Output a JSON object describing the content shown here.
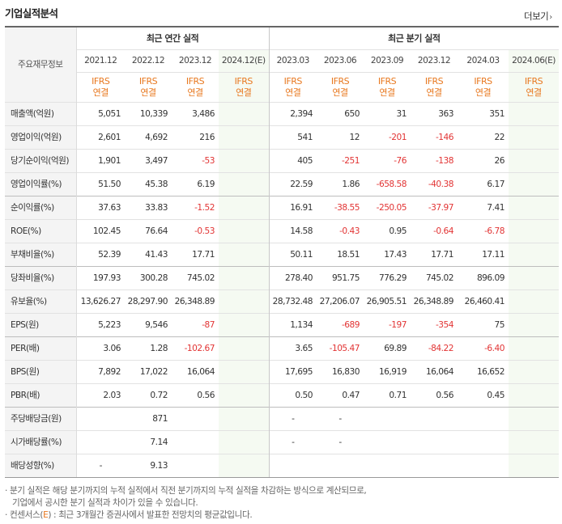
{
  "header": {
    "title": "기업실적분석",
    "more_label": "더보기",
    "more_icon": "chevron-right"
  },
  "table": {
    "row_header_label": "주요재무정보",
    "groups": {
      "annual": "최근 연간 실적",
      "quarterly": "최근 분기 실적"
    },
    "periods": [
      "2021.12",
      "2022.12",
      "2023.12",
      "2024.12(E)",
      "2023.03",
      "2023.06",
      "2023.09",
      "2023.12",
      "2024.03",
      "2024.06(E)"
    ],
    "ifrs_label": "IFRS",
    "basis_label": "연결",
    "rows": [
      {
        "label": "매출액(억원)",
        "values": [
          "5,051",
          "10,339",
          "3,486",
          "",
          "2,394",
          "650",
          "31",
          "363",
          "351",
          ""
        ]
      },
      {
        "label": "영업이익(억원)",
        "values": [
          "2,601",
          "4,692",
          "216",
          "",
          "541",
          "12",
          "-201",
          "-146",
          "22",
          ""
        ]
      },
      {
        "label": "당기순이익(억원)",
        "values": [
          "1,901",
          "3,497",
          "-53",
          "",
          "405",
          "-251",
          "-76",
          "-138",
          "26",
          ""
        ]
      },
      {
        "label": "영업이익률(%)",
        "values": [
          "51.50",
          "45.38",
          "6.19",
          "",
          "22.59",
          "1.86",
          "-658.58",
          "-40.38",
          "6.17",
          ""
        ]
      },
      {
        "label": "순이익률(%)",
        "values": [
          "37.63",
          "33.83",
          "-1.52",
          "",
          "16.91",
          "-38.55",
          "-250.05",
          "-37.97",
          "7.41",
          ""
        ]
      },
      {
        "label": "ROE(%)",
        "values": [
          "102.45",
          "76.64",
          "-0.53",
          "",
          "14.58",
          "-0.43",
          "0.95",
          "-0.64",
          "-6.78",
          ""
        ]
      },
      {
        "label": "부채비율(%)",
        "values": [
          "52.39",
          "41.43",
          "17.71",
          "",
          "50.11",
          "18.51",
          "17.43",
          "17.71",
          "17.11",
          ""
        ]
      },
      {
        "label": "당좌비율(%)",
        "values": [
          "197.93",
          "300.28",
          "745.02",
          "",
          "278.40",
          "951.75",
          "776.29",
          "745.02",
          "896.09",
          ""
        ]
      },
      {
        "label": "유보율(%)",
        "values": [
          "13,626.27",
          "28,297.90",
          "26,348.89",
          "",
          "28,732.48",
          "27,206.07",
          "26,905.51",
          "26,348.89",
          "26,460.41",
          ""
        ]
      },
      {
        "label": "EPS(원)",
        "values": [
          "5,223",
          "9,546",
          "-87",
          "",
          "1,134",
          "-689",
          "-197",
          "-354",
          "75",
          ""
        ]
      },
      {
        "label": "PER(배)",
        "values": [
          "3.06",
          "1.28",
          "-102.67",
          "",
          "3.65",
          "-105.47",
          "69.89",
          "-84.22",
          "-6.40",
          ""
        ]
      },
      {
        "label": "BPS(원)",
        "values": [
          "7,892",
          "17,022",
          "16,064",
          "",
          "17,695",
          "16,830",
          "16,919",
          "16,064",
          "16,652",
          ""
        ]
      },
      {
        "label": "PBR(배)",
        "values": [
          "2.03",
          "0.72",
          "0.56",
          "",
          "0.50",
          "0.47",
          "0.71",
          "0.56",
          "0.45",
          ""
        ]
      },
      {
        "label": "주당배당금(원)",
        "values": [
          "",
          "871",
          "",
          "",
          "-",
          "-",
          "",
          "",
          "",
          ""
        ]
      },
      {
        "label": "시가배당률(%)",
        "values": [
          "",
          "7.14",
          "",
          "",
          "-",
          "-",
          "",
          "",
          "",
          ""
        ]
      },
      {
        "label": "배당성향(%)",
        "values": [
          "-",
          "9.13",
          "",
          "",
          "",
          "",
          "",
          "",
          "",
          ""
        ]
      }
    ]
  },
  "notes": {
    "line1": "분기 실적은 해당 분기까지의 누적 실적에서 직전 분기까지의 누적 실적을 차감하는 방식으로 계산되므로,",
    "line2": "기업에서 공시한 분기 실적과 차이가 있을 수 있습니다.",
    "line3_prefix": "컨센서스(",
    "line3_e": "E",
    "line3_suffix": ") : 최근 3개월간 증권사에서 발표한 전망치의 평균값입니다."
  },
  "colors": {
    "negative": "#e23434",
    "ifrs": "#e8781f",
    "estimate_bg": "#f5faf2"
  }
}
